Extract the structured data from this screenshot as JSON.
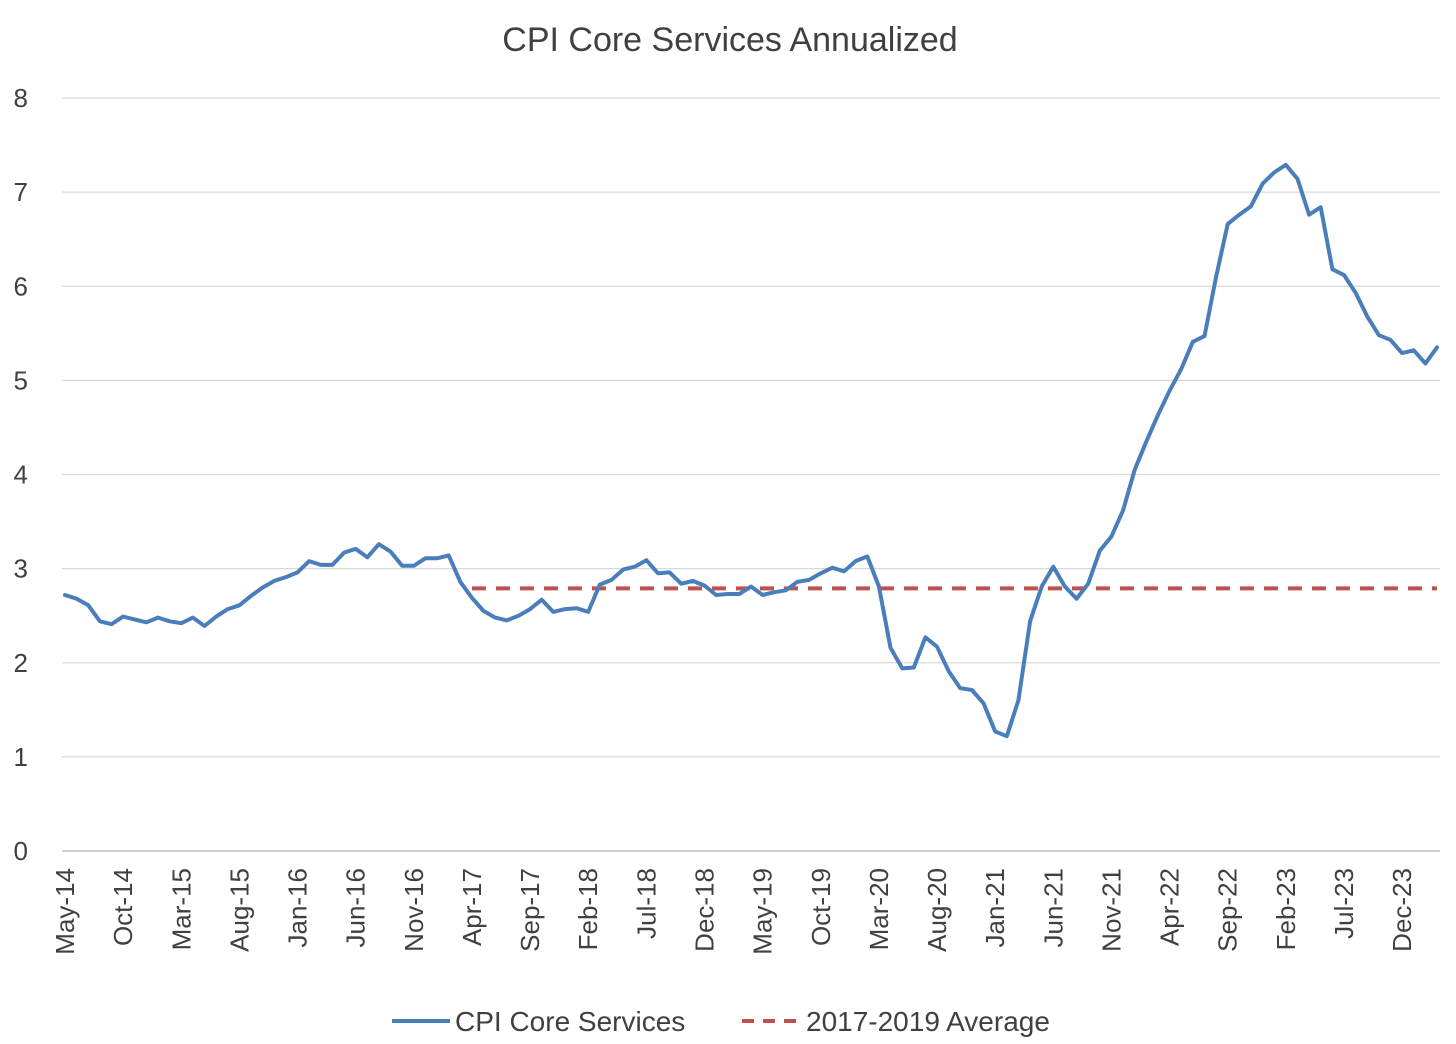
{
  "chart_data": {
    "type": "line",
    "title": "CPI Core Services Annualized",
    "xlabel": "",
    "ylabel": "",
    "ylim": [
      0,
      8
    ],
    "yticks": [
      "0",
      "1",
      "2",
      "3",
      "4",
      "5",
      "6",
      "7",
      "8"
    ],
    "grid": true,
    "legend_position": "bottom",
    "x_tick_labels": [
      "May-14",
      "Oct-14",
      "Mar-15",
      "Aug-15",
      "Jan-16",
      "Jun-16",
      "Nov-16",
      "Apr-17",
      "Sep-17",
      "Feb-18",
      "Jul-18",
      "Dec-18",
      "May-19",
      "Oct-19",
      "Mar-20",
      "Aug-20",
      "Jan-21",
      "Jun-21",
      "Nov-21",
      "Apr-22",
      "Sep-22",
      "Feb-23",
      "Jul-23",
      "Dec-23"
    ],
    "start_month": "May-14",
    "series": [
      {
        "name": "CPI Core Services",
        "color": "#4a7ebb",
        "style": "solid",
        "values": [
          2.72,
          2.68,
          2.61,
          2.44,
          2.41,
          2.49,
          2.46,
          2.43,
          2.48,
          2.44,
          2.42,
          2.48,
          2.39,
          2.49,
          2.57,
          2.61,
          2.71,
          2.8,
          2.87,
          2.91,
          2.96,
          3.08,
          3.04,
          3.04,
          3.17,
          3.21,
          3.12,
          3.26,
          3.18,
          3.03,
          3.03,
          3.11,
          3.11,
          3.14,
          2.86,
          2.69,
          2.55,
          2.48,
          2.45,
          2.5,
          2.57,
          2.67,
          2.54,
          2.57,
          2.58,
          2.54,
          2.83,
          2.88,
          2.99,
          3.02,
          3.09,
          2.95,
          2.96,
          2.84,
          2.87,
          2.82,
          2.72,
          2.73,
          2.73,
          2.81,
          2.72,
          2.75,
          2.77,
          2.86,
          2.88,
          2.95,
          3.01,
          2.97,
          3.08,
          3.13,
          2.81,
          2.16,
          1.94,
          1.95,
          2.27,
          2.17,
          1.91,
          1.73,
          1.71,
          1.57,
          1.27,
          1.22,
          1.6,
          2.44,
          2.81,
          3.02,
          2.81,
          2.68,
          2.84,
          3.19,
          3.34,
          3.62,
          4.05,
          4.35,
          4.63,
          4.89,
          5.12,
          5.41,
          5.47,
          6.1,
          6.66,
          6.76,
          6.85,
          7.09,
          7.21,
          7.29,
          7.14,
          6.76,
          6.84,
          6.18,
          6.12,
          5.93,
          5.68,
          5.48,
          5.43,
          5.29,
          5.32,
          5.18,
          5.35
        ]
      },
      {
        "name": "2017-2019 Average",
        "color": "#c0504d",
        "style": "dashed",
        "start_month": "Apr-17",
        "value": 2.79
      }
    ]
  }
}
